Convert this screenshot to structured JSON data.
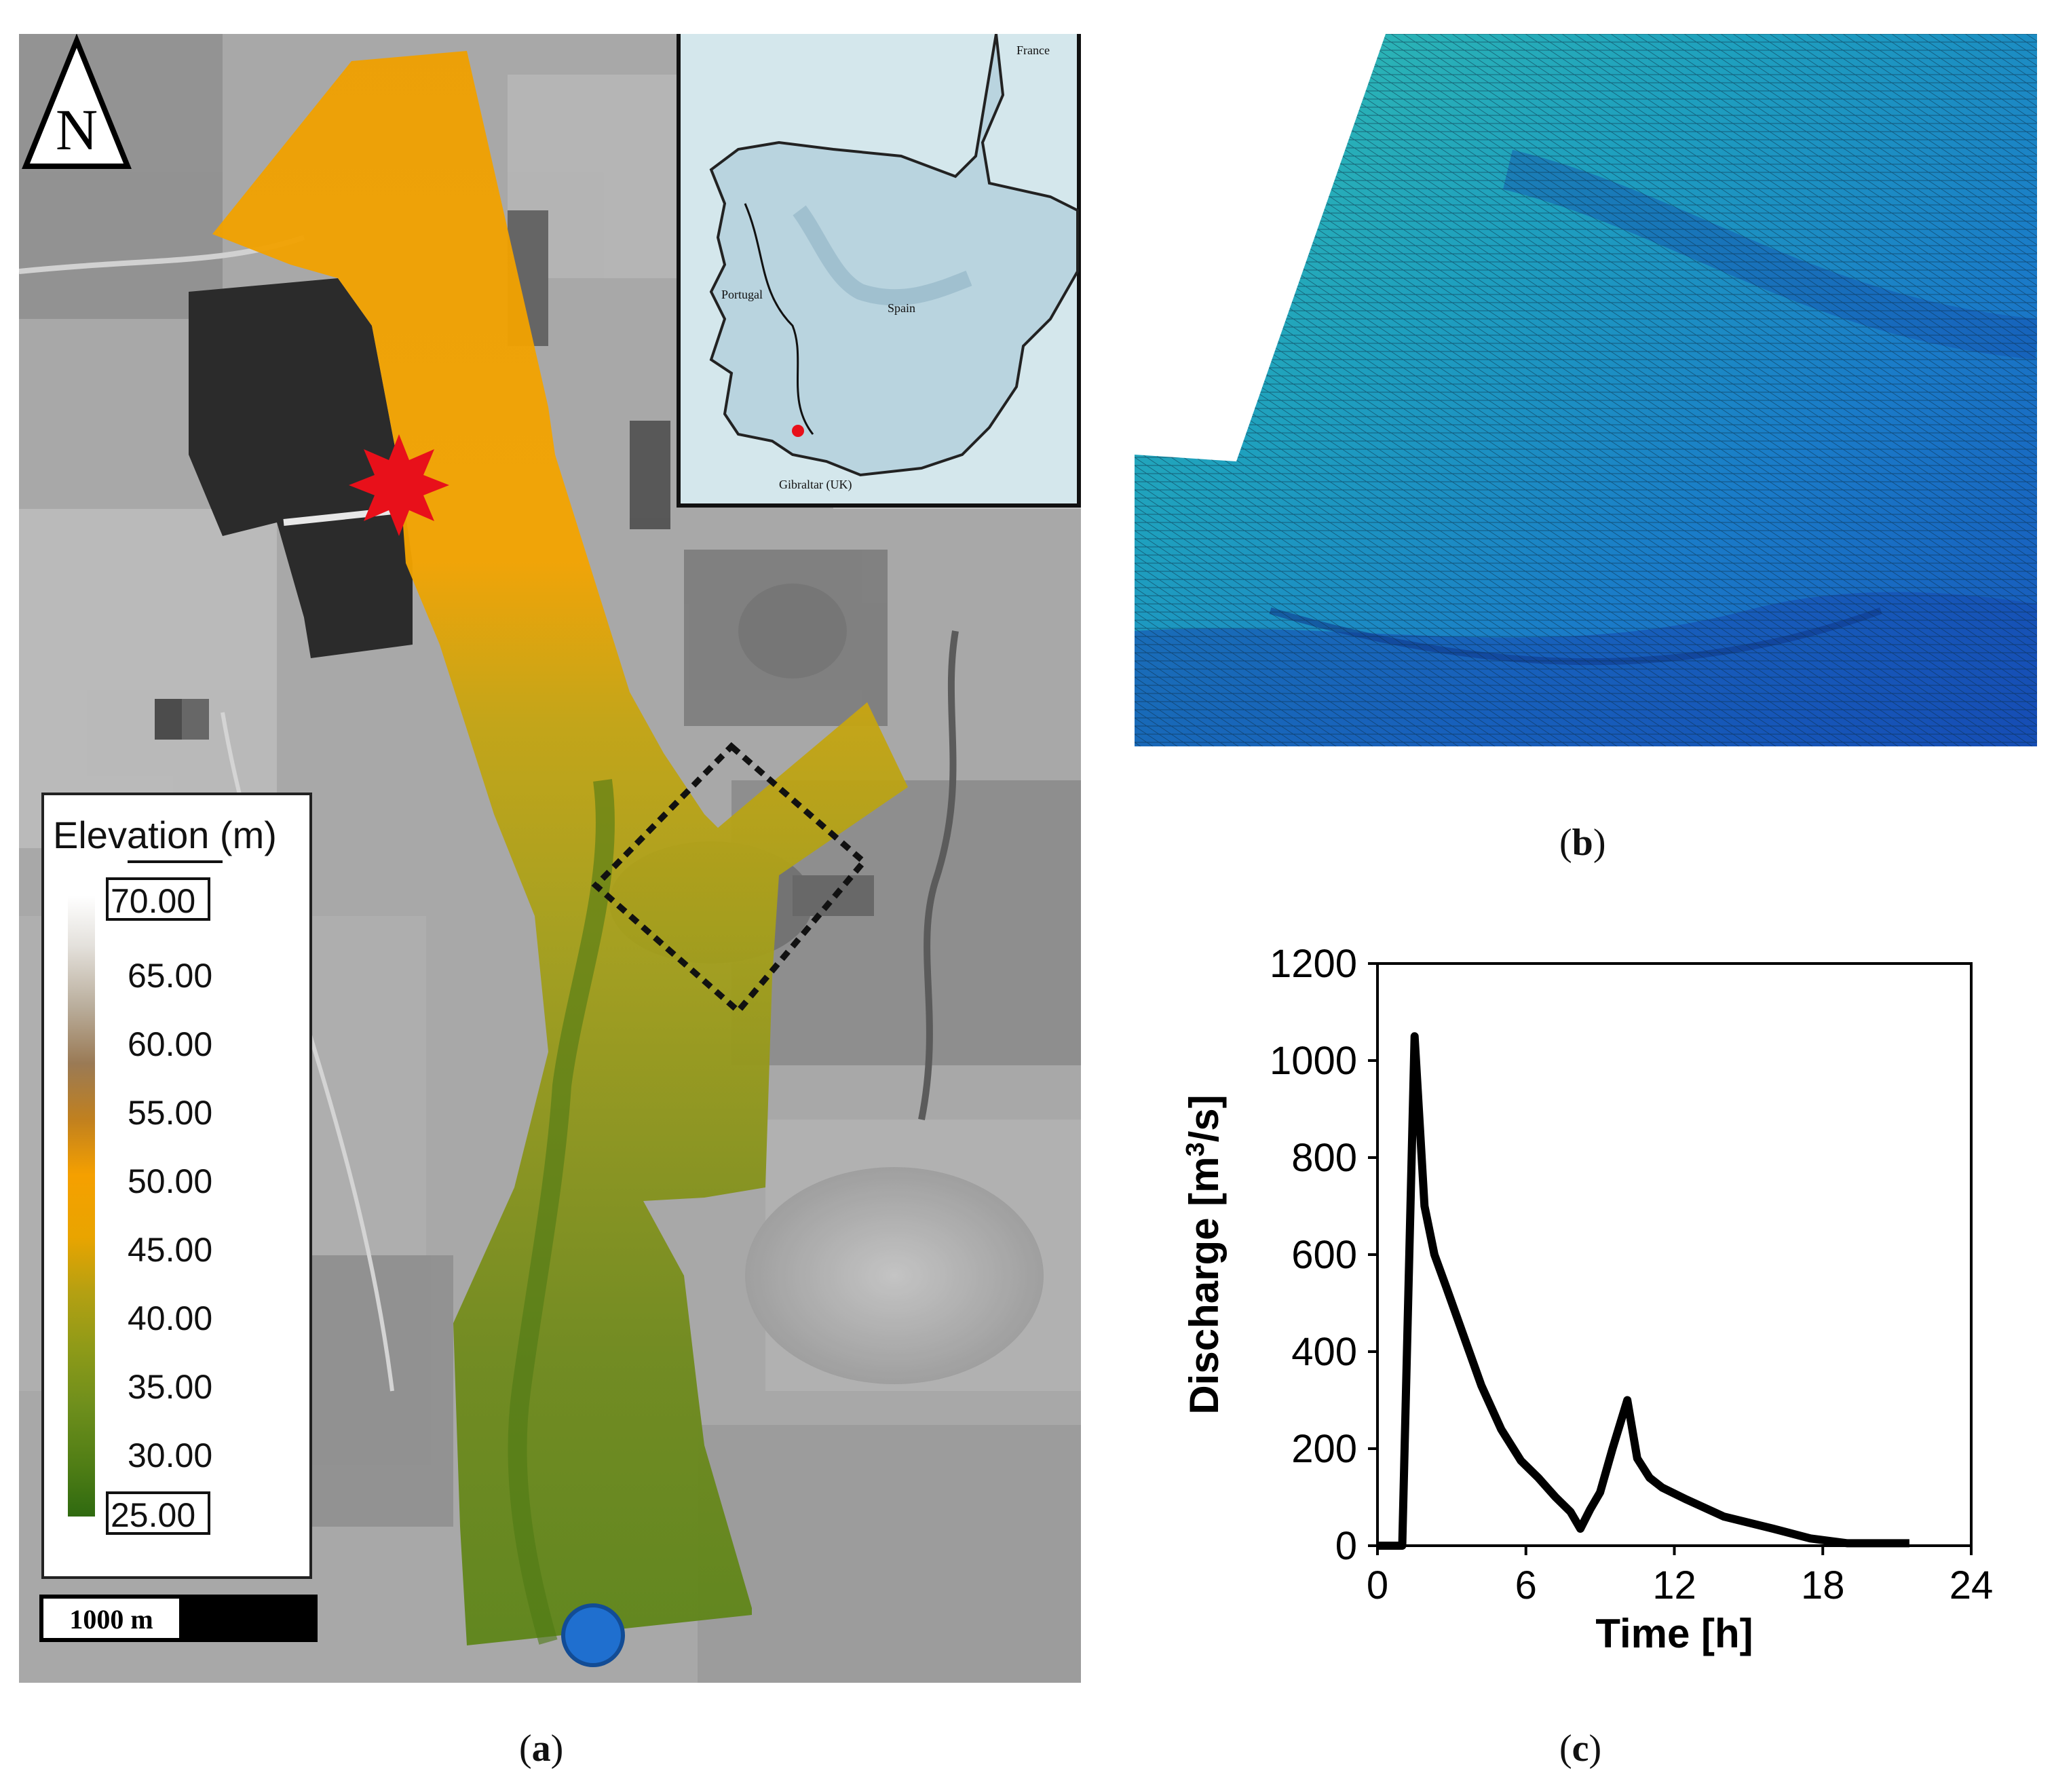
{
  "panel_a": {
    "caption_label": "a",
    "north_label": "N",
    "scale_bar_label": "1000 m",
    "legend": {
      "title": "Elevation (m)",
      "max_label": "70.00",
      "min_label": "25.00",
      "ticks": [
        "65.00",
        "60.00",
        "55.00",
        "50.00",
        "45.00",
        "40.00",
        "35.00",
        "30.00"
      ]
    },
    "inset": {
      "labels": {
        "france": "France",
        "portugal": "Portugal",
        "spain": "Spain",
        "gibraltar": "Gibraltar (UK)"
      }
    },
    "colors": {
      "star": "#e8101a",
      "outlet": "#1f6fcf",
      "domain_orange": "#f5a000",
      "domain_green": "#5c8a1c"
    }
  },
  "panel_b": {
    "caption_label": "b"
  },
  "panel_c": {
    "caption_label": "c",
    "chart_data": {
      "type": "line",
      "title": "",
      "xlabel": "Time [h]",
      "ylabel_prefix": "Discharge [m",
      "ylabel_sup": "3",
      "ylabel_suffix": "/s]",
      "xlim": [
        0,
        24
      ],
      "ylim": [
        0,
        1200
      ],
      "xticks": [
        "0",
        "6",
        "12",
        "18",
        "24"
      ],
      "yticks": [
        "0",
        "200",
        "400",
        "600",
        "800",
        "1000",
        "1200"
      ],
      "grid": false,
      "series": [
        {
          "x": [
            0,
            1.0,
            1.5,
            1.9,
            2.3,
            2.8,
            3.5,
            4.2,
            5.0,
            5.8,
            6.5,
            7.2,
            7.8,
            8.2,
            8.6,
            9.0,
            9.5,
            10.1,
            10.5,
            11.0,
            11.5,
            12.5,
            14.0,
            16.0,
            17.5,
            19.0,
            20.0,
            21.5
          ],
          "y": [
            0,
            0,
            1050,
            700,
            600,
            530,
            430,
            330,
            240,
            175,
            140,
            100,
            70,
            35,
            75,
            110,
            200,
            300,
            180,
            140,
            120,
            95,
            60,
            35,
            15,
            5,
            5,
            5
          ]
        }
      ]
    }
  }
}
